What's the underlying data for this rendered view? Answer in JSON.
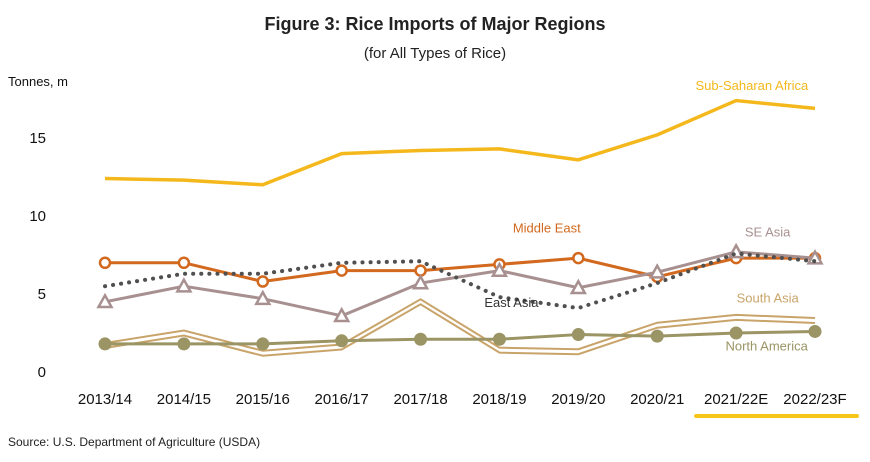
{
  "chart_data": {
    "type": "line",
    "title": "Figure 3: Rice Imports of Major Regions",
    "subtitle": "(for All Types of Rice)",
    "ylabel": "Tonnes, m",
    "ylim": [
      0,
      20
    ],
    "yticks": [
      0,
      5,
      10,
      15
    ],
    "grid": false,
    "categories": [
      "2013/14",
      "2014/15",
      "2015/16",
      "2016/17",
      "2017/18",
      "2018/19",
      "2019/20",
      "2020/21",
      "2021/22E",
      "2022/23F"
    ],
    "highlight_categories": [
      "2021/22E",
      "2022/23F"
    ],
    "highlight_color": "#f5c518",
    "series": [
      {
        "name": "Sub-Saharan Africa",
        "color": "#f5b81c",
        "style": "solid",
        "marker": "none",
        "values": [
          12.4,
          12.3,
          12.0,
          14.0,
          14.2,
          14.3,
          13.6,
          15.2,
          17.4,
          16.9
        ]
      },
      {
        "name": "Middle East",
        "color": "#d2691e",
        "style": "solid",
        "marker": "circle-open",
        "values": [
          7.0,
          7.0,
          5.8,
          6.5,
          6.5,
          6.9,
          7.3,
          6.1,
          7.3,
          7.3
        ]
      },
      {
        "name": "SE Asia",
        "color": "#a89090",
        "style": "solid",
        "marker": "triangle-open",
        "values": [
          4.5,
          5.5,
          4.7,
          3.6,
          5.7,
          6.5,
          5.4,
          6.4,
          7.7,
          7.3
        ]
      },
      {
        "name": "East Asia",
        "color": "#505050",
        "style": "dotted",
        "marker": "none",
        "values": [
          5.5,
          6.3,
          6.3,
          7.0,
          7.1,
          4.8,
          4.1,
          5.7,
          7.6,
          7.1
        ]
      },
      {
        "name": "South Asia",
        "color": "#c9a46a",
        "style": "double",
        "marker": "none",
        "values": [
          1.7,
          2.5,
          1.2,
          1.6,
          4.5,
          1.4,
          1.3,
          3.0,
          3.5,
          3.3
        ]
      },
      {
        "name": "North America",
        "color": "#9b9464",
        "style": "solid",
        "marker": "circle-filled",
        "values": [
          1.8,
          1.8,
          1.8,
          2.0,
          2.1,
          2.1,
          2.4,
          2.3,
          2.5,
          2.6
        ]
      }
    ],
    "source": "Source: U.S. Department of Agriculture (USDA)"
  }
}
